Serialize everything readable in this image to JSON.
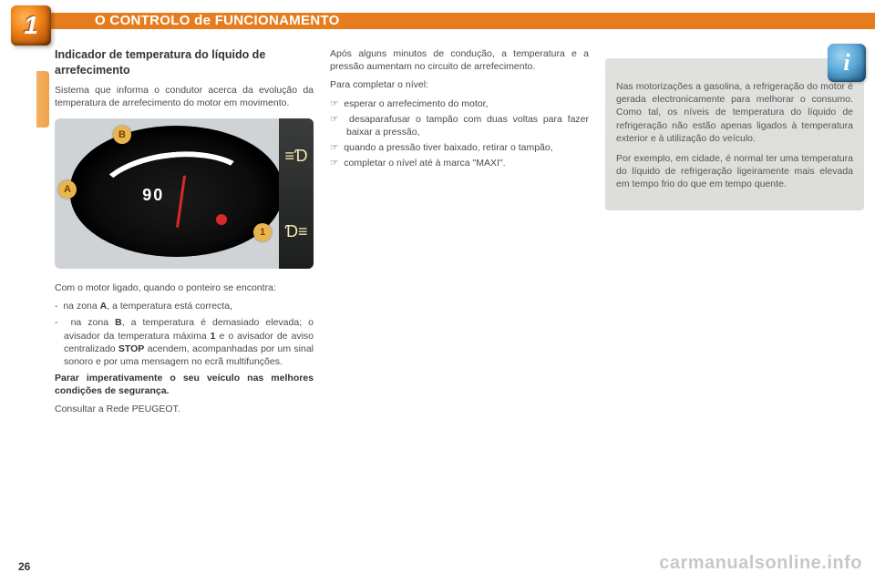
{
  "colors": {
    "header_bg": "#e77c1e",
    "badge_gradient_inner": "#ffb35d",
    "badge_gradient_outer": "#8e3f05",
    "side_tab": "#eda445",
    "body_text": "#4a4a4a",
    "heading_text": "#333333",
    "info_box_bg": "#e0e0de",
    "info_badge_inner": "#9fd2ef",
    "info_badge_outer": "#2e6e9c",
    "gauge_bg": "#cfd3d6",
    "gauge_dial": "#0b0b0b",
    "gauge_needle": "#d92a2a",
    "callout_bg": "#e8b54e",
    "watermark": "rgba(0,0,0,0.22)"
  },
  "typography": {
    "body_fontsize_pt": 8,
    "heading_fontsize_pt": 9.5,
    "title_fontsize_pt": 11,
    "chapter_number_fontsize_pt": 21,
    "font_family": "Arial, Helvetica, sans-serif"
  },
  "header": {
    "chapter_number": "1",
    "title": "O CONTROLO de FUNCIONAMENTO"
  },
  "page_number": "26",
  "watermark": "carmanualsonline.info",
  "left": {
    "heading": "Indicador de temperatura do líquido de arrefecimento",
    "intro": "Sistema que informa o condutor acerca da evolução da temperatura de arrefe­cimento do motor em movimento.",
    "gauge": {
      "type": "gauge",
      "center_label": "90",
      "callouts": {
        "A": "A",
        "B": "B",
        "one": "1"
      },
      "right_icons": [
        "fog-front",
        "fog-rear"
      ],
      "needle_color": "#d92a2a",
      "arc_color": "#ffffff",
      "dial_color": "#0b0b0b",
      "background_color": "#cfd3d6"
    },
    "after_gauge_intro": "Com o motor ligado, quando o ponteiro se encontra:",
    "items": [
      {
        "bullet": "-",
        "text_pre": "na zona ",
        "bold1": "A",
        "text_post": ", a temperatura está correcta,"
      },
      {
        "bullet": "-",
        "text_pre": "na zona ",
        "bold1": "B",
        "text_mid": ", a temperatura é dema­siado elevada; o avisador da tem­peratura máxima ",
        "bold2": "1",
        "text_mid2": " e o avisador de aviso centralizado ",
        "bold3": "STOP",
        "text_post": " acendem, acompanhadas por um sinal sonoro e por uma mensagem no ecrã multi­funções."
      }
    ],
    "warning": "Parar imperativamente o seu veículo nas melhores condições de segurança.",
    "final": "Consultar a Rede PEUGEOT."
  },
  "mid": {
    "p1": "Após alguns minutos de condução, a temperatura e a pressão aumentam no circuito de arrefecimento.",
    "p2": "Para completar o nível:",
    "steps": [
      "esperar o arrefecimento do motor,",
      "desaparafusar o tampão com duas voltas para fazer baixar a pressão,",
      "quando a pressão tiver baixado, re­tirar o tampão,",
      "completar o nível até à marca \"MAXI\"."
    ],
    "hand_symbol": "☞"
  },
  "right": {
    "info_symbol": "i",
    "p1": "Nas motorizações a gasolina, a refrigeração do motor é gerada electronicamente para melhorar o consumo. Como tal, os níveis de temperatura do líquido de refrige­ração não estão apenas ligados à temperatura exterior e à utilização do veículo.",
    "p2": "Por exemplo, em cidade, é normal ter uma temperatura do líquido de refrigeração ligeiramente mais elevada em tempo frio do que em tempo quente."
  }
}
